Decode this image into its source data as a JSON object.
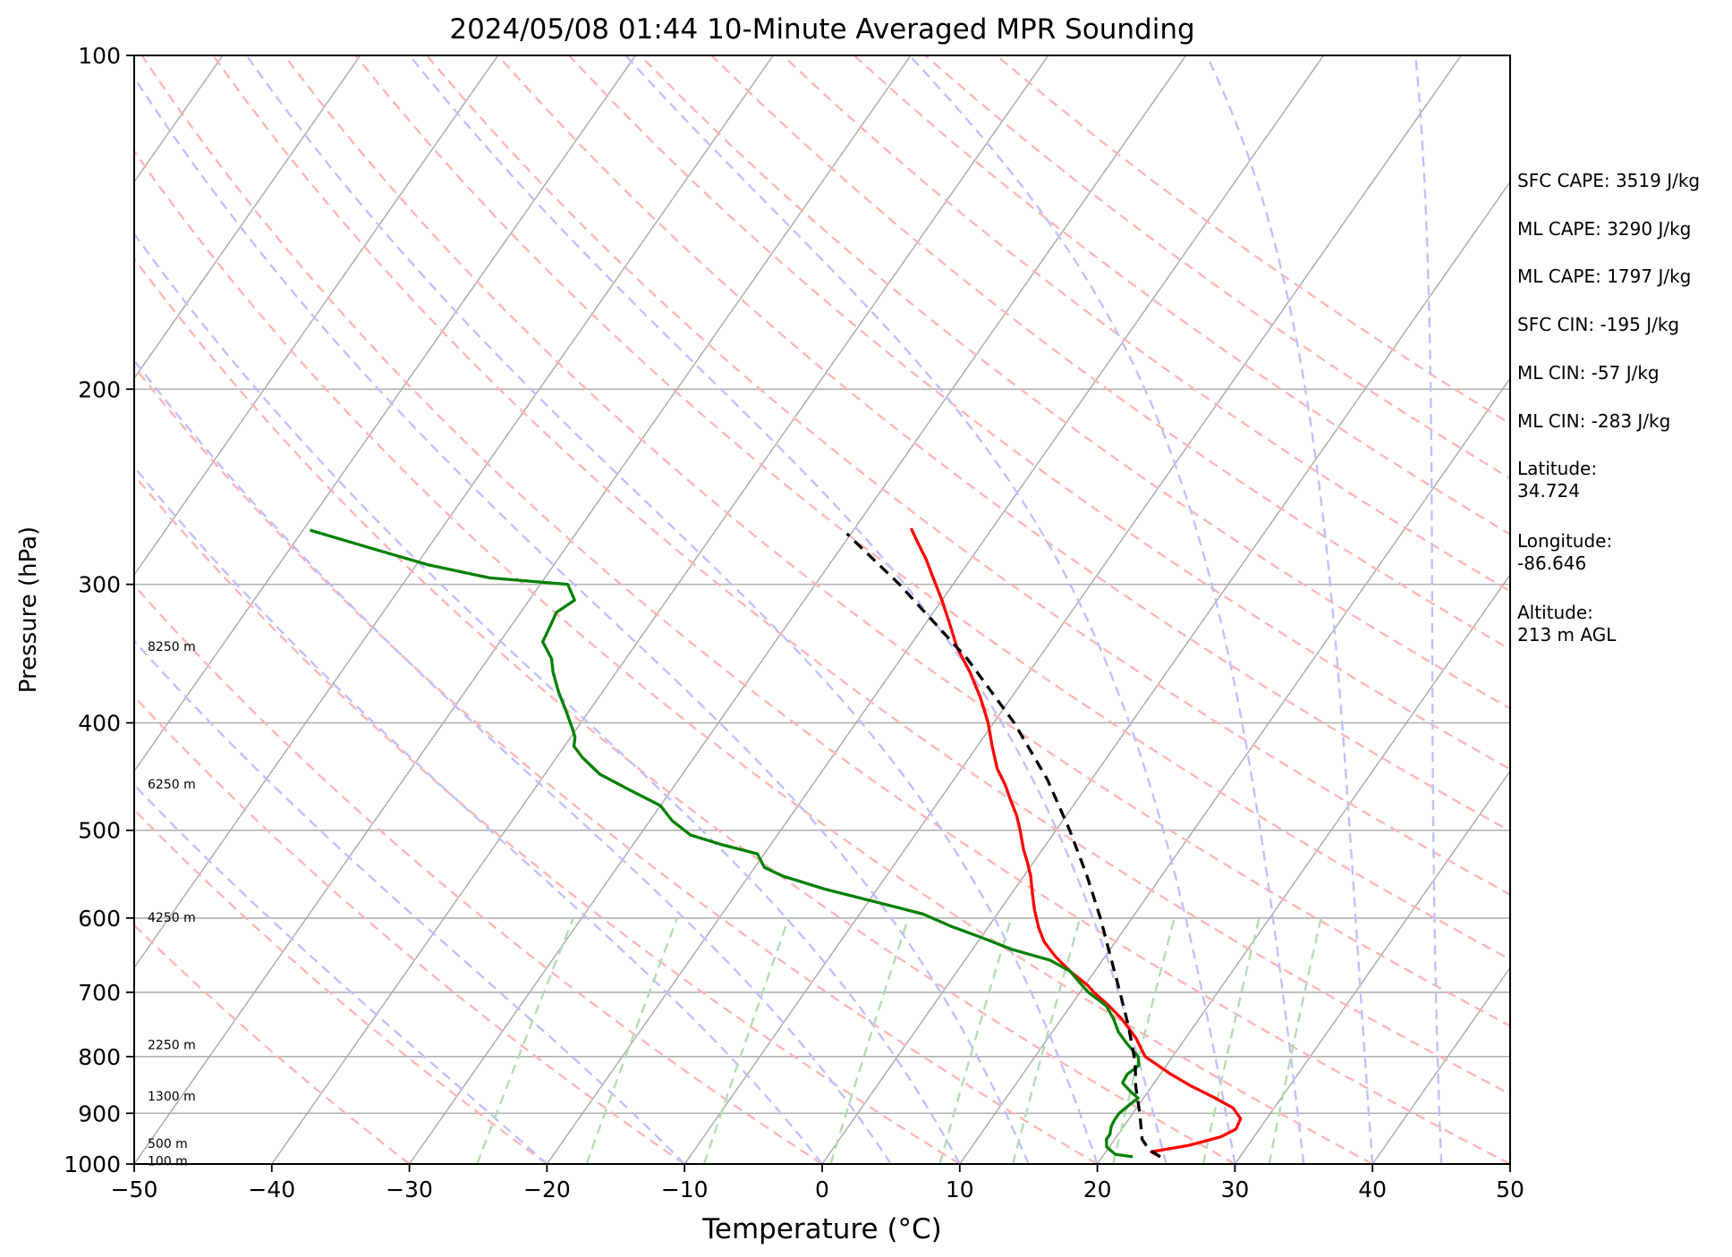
{
  "chart_data": {
    "type": "skew-t log-p",
    "title": "2024/05/08 01:44 10-Minute Averaged MPR Sounding",
    "xlabel": "Temperature (°C)",
    "ylabel": "Pressure (hPa)",
    "xlim": [
      -50,
      50
    ],
    "ylim": [
      1000,
      100
    ],
    "y_scale": "log",
    "x_ticks": [
      "−50",
      "−40",
      "−30",
      "−20",
      "−10",
      "0",
      "10",
      "20",
      "30",
      "40",
      "50"
    ],
    "y_ticks": [
      "100",
      "200",
      "300",
      "400",
      "500",
      "600",
      "700",
      "800",
      "900",
      "1000"
    ],
    "grid": "horizontal pressure lines",
    "height_labels": [
      {
        "text": "8250 m",
        "p": 342
      },
      {
        "text": "6250 m",
        "p": 455
      },
      {
        "text": "4250 m",
        "p": 600
      },
      {
        "text": "2250 m",
        "p": 782
      },
      {
        "text": "1300 m",
        "p": 870
      },
      {
        "text": "500 m",
        "p": 960
      },
      {
        "text": "100 m",
        "p": 995
      }
    ],
    "series": [
      {
        "color": "#ff0000",
        "points": [
          {
            "p": 985,
            "t": 24.2
          },
          {
            "p": 975,
            "t": 23.3
          },
          {
            "p": 962,
            "t": 25.7
          },
          {
            "p": 945,
            "t": 27.6
          },
          {
            "p": 930,
            "t": 28.3
          },
          {
            "p": 910,
            "t": 28.1
          },
          {
            "p": 890,
            "t": 27.0
          },
          {
            "p": 870,
            "t": 25.0
          },
          {
            "p": 850,
            "t": 22.8
          },
          {
            "p": 828,
            "t": 20.6
          },
          {
            "p": 800,
            "t": 18.0
          },
          {
            "p": 770,
            "t": 16.4
          },
          {
            "p": 740,
            "t": 14.4
          },
          {
            "p": 720,
            "t": 12.8
          },
          {
            "p": 700,
            "t": 11.0
          },
          {
            "p": 690,
            "t": 10.2
          },
          {
            "p": 670,
            "t": 8.2
          },
          {
            "p": 650,
            "t": 6.4
          },
          {
            "p": 630,
            "t": 4.8
          },
          {
            "p": 612,
            "t": 3.7
          },
          {
            "p": 590,
            "t": 2.5
          },
          {
            "p": 570,
            "t": 1.5
          },
          {
            "p": 550,
            "t": 0.5
          },
          {
            "p": 535,
            "t": -0.4
          },
          {
            "p": 520,
            "t": -1.4
          },
          {
            "p": 500,
            "t": -2.6
          },
          {
            "p": 485,
            "t": -3.6
          },
          {
            "p": 470,
            "t": -4.8
          },
          {
            "p": 455,
            "t": -6.0
          },
          {
            "p": 440,
            "t": -7.4
          },
          {
            "p": 420,
            "t": -8.9
          },
          {
            "p": 400,
            "t": -10.4
          },
          {
            "p": 380,
            "t": -12.2
          },
          {
            "p": 360,
            "t": -14.3
          },
          {
            "p": 342,
            "t": -16.5
          },
          {
            "p": 325,
            "t": -18.3
          },
          {
            "p": 310,
            "t": -20.0
          },
          {
            "p": 295,
            "t": -21.9
          },
          {
            "p": 285,
            "t": -23.2
          },
          {
            "p": 275,
            "t": -24.7
          },
          {
            "p": 267,
            "t": -25.9
          }
        ]
      },
      {
        "color": "#008000",
        "points": [
          {
            "p": 985,
            "t": 22.2
          },
          {
            "p": 980,
            "t": 20.8
          },
          {
            "p": 965,
            "t": 19.8
          },
          {
            "p": 950,
            "t": 19.4
          },
          {
            "p": 940,
            "t": 19.4
          },
          {
            "p": 925,
            "t": 19.1
          },
          {
            "p": 912,
            "t": 19.0
          },
          {
            "p": 900,
            "t": 19.0
          },
          {
            "p": 885,
            "t": 19.3
          },
          {
            "p": 872,
            "t": 19.6
          },
          {
            "p": 860,
            "t": 18.7
          },
          {
            "p": 845,
            "t": 17.7
          },
          {
            "p": 830,
            "t": 17.6
          },
          {
            "p": 815,
            "t": 18.0
          },
          {
            "p": 800,
            "t": 17.5
          },
          {
            "p": 780,
            "t": 16.1
          },
          {
            "p": 760,
            "t": 14.8
          },
          {
            "p": 740,
            "t": 13.8
          },
          {
            "p": 720,
            "t": 12.6
          },
          {
            "p": 700,
            "t": 10.6
          },
          {
            "p": 685,
            "t": 9.4
          },
          {
            "p": 670,
            "t": 8.2
          },
          {
            "p": 655,
            "t": 6.2
          },
          {
            "p": 640,
            "t": 2.8
          },
          {
            "p": 625,
            "t": 0.1
          },
          {
            "p": 610,
            "t": -2.8
          },
          {
            "p": 595,
            "t": -5.4
          },
          {
            "p": 580,
            "t": -9.5
          },
          {
            "p": 565,
            "t": -13.8
          },
          {
            "p": 550,
            "t": -17.5
          },
          {
            "p": 540,
            "t": -19.3
          },
          {
            "p": 525,
            "t": -20.5
          },
          {
            "p": 515,
            "t": -23.6
          },
          {
            "p": 505,
            "t": -26.3
          },
          {
            "p": 490,
            "t": -28.4
          },
          {
            "p": 475,
            "t": -30.0
          },
          {
            "p": 460,
            "t": -33.0
          },
          {
            "p": 445,
            "t": -36.0
          },
          {
            "p": 430,
            "t": -38.1
          },
          {
            "p": 420,
            "t": -39.3
          },
          {
            "p": 412,
            "t": -39.7
          },
          {
            "p": 405,
            "t": -40.3
          },
          {
            "p": 390,
            "t": -41.7
          },
          {
            "p": 375,
            "t": -43.2
          },
          {
            "p": 360,
            "t": -44.6
          },
          {
            "p": 350,
            "t": -45.4
          },
          {
            "p": 338,
            "t": -46.9
          },
          {
            "p": 325,
            "t": -47.2
          },
          {
            "p": 318,
            "t": -47.4
          },
          {
            "p": 310,
            "t": -46.7
          },
          {
            "p": 300,
            "t": -48.0
          },
          {
            "p": 296,
            "t": -54.0
          },
          {
            "p": 288,
            "t": -59.2
          },
          {
            "p": 278,
            "t": -64.3
          },
          {
            "p": 268,
            "t": -69.5
          }
        ]
      },
      {
        "color": "#000000",
        "style": "dashed",
        "points": [
          {
            "p": 985,
            "t": 24.2
          },
          {
            "p": 970,
            "t": 23.0
          },
          {
            "p": 950,
            "t": 22.0
          },
          {
            "p": 900,
            "t": 20.5
          },
          {
            "p": 850,
            "t": 18.8
          },
          {
            "p": 820,
            "t": 17.9
          },
          {
            "p": 800,
            "t": 17.2
          },
          {
            "p": 750,
            "t": 15.2
          },
          {
            "p": 700,
            "t": 12.9
          },
          {
            "p": 650,
            "t": 10.4
          },
          {
            "p": 600,
            "t": 7.7
          },
          {
            "p": 550,
            "t": 4.6
          },
          {
            "p": 500,
            "t": 1.0
          },
          {
            "p": 450,
            "t": -3.2
          },
          {
            "p": 400,
            "t": -8.5
          },
          {
            "p": 350,
            "t": -15.2
          },
          {
            "p": 300,
            "t": -23.9
          },
          {
            "p": 270,
            "t": -30.3
          }
        ]
      }
    ],
    "background": {
      "isotherms_color": "#a9a9a9",
      "dry_adiabats_color": "#ffb6b6",
      "moist_adiabats_color": "#c0c0ff",
      "mixing_ratio_color": "#b4dcb4"
    }
  },
  "stats": [
    {
      "text": "SFC CAPE: 3519 J/kg",
      "y": 202
    },
    {
      "text": "ML CAPE: 3290 J/kg",
      "y": 256
    },
    {
      "text": "ML CAPE: 1797 J/kg",
      "y": 309
    },
    {
      "text": "SFC CIN: -195 J/kg",
      "y": 363
    },
    {
      "text": "ML CIN: -57 J/kg",
      "y": 417
    },
    {
      "text": "ML CIN: -283 J/kg",
      "y": 471
    },
    {
      "text": "Latitude:\n34.724",
      "y": 524
    },
    {
      "text": "Longitude:\n-86.646",
      "y": 605
    },
    {
      "text": "Altitude:\n213 m AGL",
      "y": 685
    }
  ]
}
